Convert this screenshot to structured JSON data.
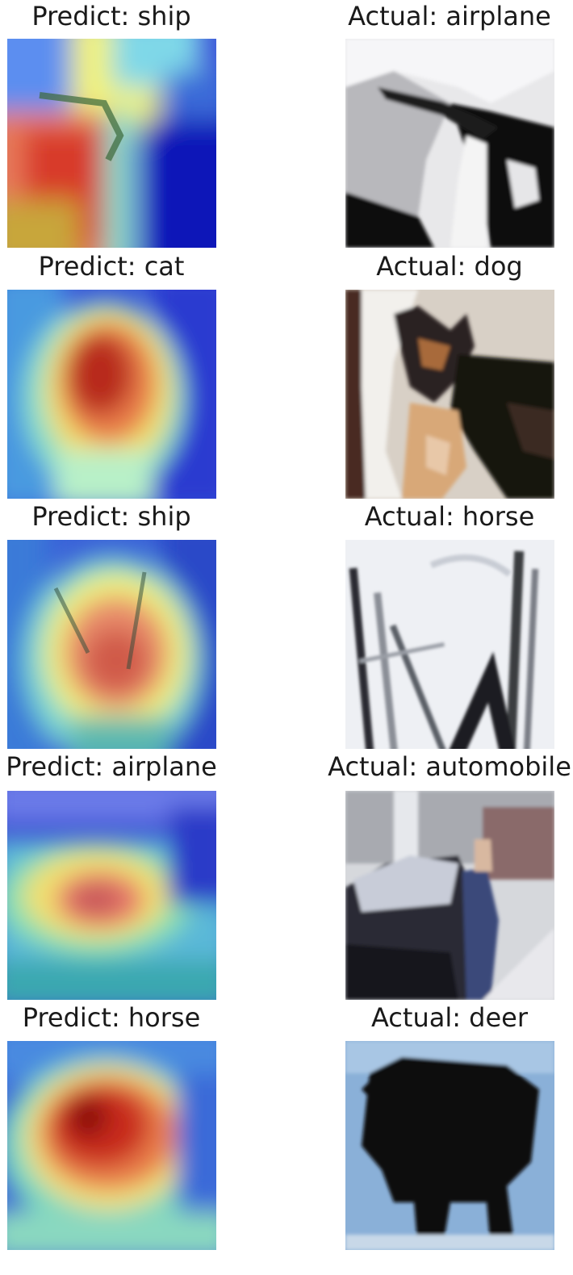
{
  "panels": [
    {
      "predict_label": "Predict: ship",
      "actual_label": "Actual: airplane"
    },
    {
      "predict_label": "Predict: cat",
      "actual_label": "Actual: dog"
    },
    {
      "predict_label": "Predict: ship",
      "actual_label": "Actual: horse"
    },
    {
      "predict_label": "Predict: airplane",
      "actual_label": "Actual: automobile"
    },
    {
      "predict_label": "Predict: horse",
      "actual_label": "Actual: deer"
    }
  ]
}
